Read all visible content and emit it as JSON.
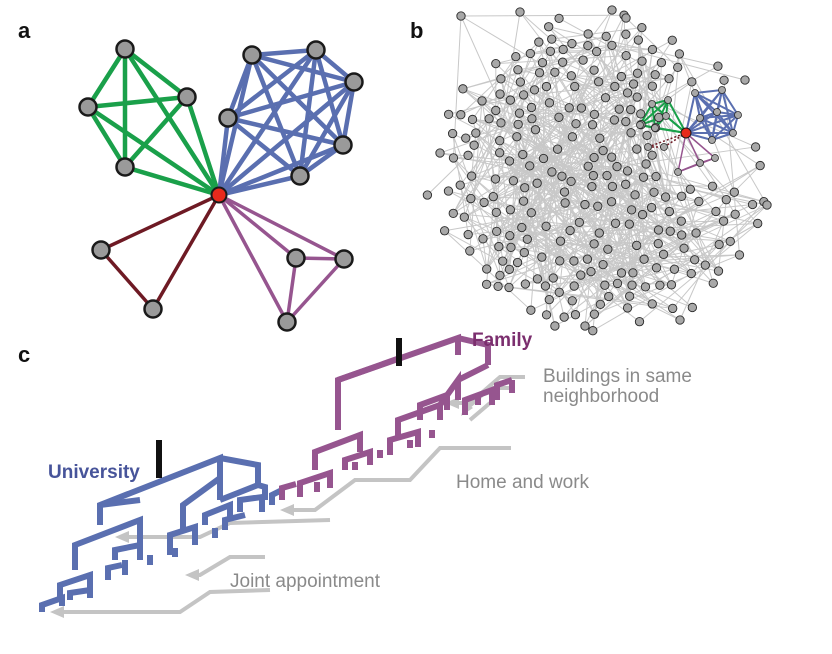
{
  "panels": {
    "a": "a",
    "b": "b",
    "c": "c"
  },
  "labels": {
    "university": "University",
    "family": "Family",
    "buildings_line1": "Buildings in same",
    "buildings_line2": "neighborhood",
    "home_work": "Home and work",
    "joint": "Joint appointment"
  },
  "colors": {
    "green": "#1aa04a",
    "blue": "#5a6fb0",
    "dark_red": "#6e1a24",
    "purple": "#96558f",
    "focal": "#e8291c",
    "node": "#9a9a9a",
    "edge_gray": "#c8c8c8",
    "arrow_gray": "#c4c4c4",
    "university_text": "#47549a",
    "family_text": "#7b2e6e"
  }
}
